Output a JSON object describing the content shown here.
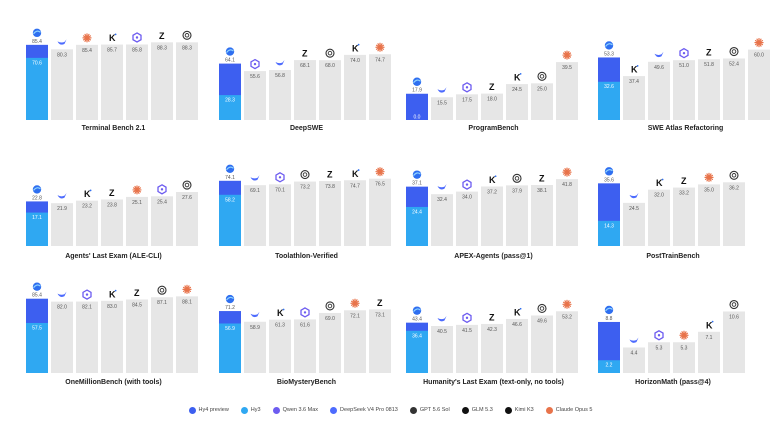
{
  "legend": [
    {
      "key": "hy4p",
      "label": "Hy4 preview",
      "color": "#3d5ff0"
    },
    {
      "key": "hy3",
      "label": "Hy3",
      "color": "#2fa8f2"
    },
    {
      "key": "qwen",
      "label": "Qwen 3.6 Max",
      "color": "#6d5cf0"
    },
    {
      "key": "ds",
      "label": "DeepSeek V4 Pro 0813",
      "color": "#4d6bfe"
    },
    {
      "key": "gpt",
      "label": "GPT 5.6 Sol",
      "color": "#333333"
    },
    {
      "key": "glm",
      "label": "GLM 5.3",
      "color": "#111111"
    },
    {
      "key": "kimi",
      "label": "Kimi K3",
      "color": "#111111"
    },
    {
      "key": "claude",
      "label": "Claude Opus 5",
      "color": "#e8734a"
    }
  ],
  "chart_data": [
    {
      "type": "bar",
      "title": "Terminal Bench 2.1",
      "ylim": [
        0,
        100
      ],
      "bars": [
        {
          "model": "hy4p",
          "value": 85.4,
          "inner_model": "hy3",
          "inner_value": 70.6
        },
        {
          "model": "ds",
          "value": 80.3
        },
        {
          "model": "claude",
          "value": 85.4
        },
        {
          "model": "kimi",
          "value": 85.7
        },
        {
          "model": "qwen",
          "value": 85.8
        },
        {
          "model": "glm",
          "value": 88.3
        },
        {
          "model": "gpt",
          "value": 88.3
        }
      ]
    },
    {
      "type": "bar",
      "title": "DeepSWE",
      "ylim": [
        0,
        100
      ],
      "bars": [
        {
          "model": "hy4p",
          "value": 64.1,
          "inner_model": "hy3",
          "inner_value": 28.3
        },
        {
          "model": "qwen",
          "value": 55.6
        },
        {
          "model": "ds",
          "value": 56.8
        },
        {
          "model": "glm",
          "value": 68.1
        },
        {
          "model": "gpt",
          "value": 68.0
        },
        {
          "model": "kimi",
          "value": 74.0
        },
        {
          "model": "claude",
          "value": 74.7
        }
      ]
    },
    {
      "type": "bar",
      "title": "ProgramBench",
      "ylim": [
        0,
        60
      ],
      "bars": [
        {
          "model": "hy4p",
          "value": 17.9,
          "inner_model": "hy3",
          "inner_value": 0.0
        },
        {
          "model": "ds",
          "value": 15.5
        },
        {
          "model": "qwen",
          "value": 17.5
        },
        {
          "model": "glm",
          "value": 18.0
        },
        {
          "model": "kimi",
          "value": 24.5
        },
        {
          "model": "gpt",
          "value": 25.0
        },
        {
          "model": "claude",
          "value": 39.5
        }
      ]
    },
    {
      "type": "bar",
      "title": "SWE Atlas Refactoring",
      "ylim": [
        0,
        75
      ],
      "bars": [
        {
          "model": "hy4p",
          "value": 53.3,
          "inner_model": "hy3",
          "inner_value": 32.6
        },
        {
          "model": "kimi",
          "value": 37.4
        },
        {
          "model": "ds",
          "value": 49.6
        },
        {
          "model": "qwen",
          "value": 51.0
        },
        {
          "model": "glm",
          "value": 51.8
        },
        {
          "model": "gpt",
          "value": 52.4
        },
        {
          "model": "claude",
          "value": 60.0
        }
      ]
    },
    {
      "type": "bar",
      "title": "Agents' Last Exam (ALE-CLI)",
      "ylim": [
        0,
        45
      ],
      "bars": [
        {
          "model": "hy4p",
          "value": 22.8,
          "inner_model": "hy3",
          "inner_value": 17.1
        },
        {
          "model": "ds",
          "value": 21.9
        },
        {
          "model": "kimi",
          "value": 23.2
        },
        {
          "model": "glm",
          "value": 23.8
        },
        {
          "model": "claude",
          "value": 25.1
        },
        {
          "model": "qwen",
          "value": 25.4
        },
        {
          "model": "gpt",
          "value": 27.6
        }
      ]
    },
    {
      "type": "bar",
      "title": "Toolathlon-Verified",
      "ylim": [
        0,
        100
      ],
      "bars": [
        {
          "model": "hy4p",
          "value": 74.1,
          "inner_model": "hy3",
          "inner_value": 58.2
        },
        {
          "model": "ds",
          "value": 69.1
        },
        {
          "model": "qwen",
          "value": 70.1
        },
        {
          "model": "gpt",
          "value": 73.2
        },
        {
          "model": "glm",
          "value": 73.8
        },
        {
          "model": "kimi",
          "value": 74.7
        },
        {
          "model": "claude",
          "value": 76.5
        }
      ]
    },
    {
      "type": "bar",
      "title": "APEX-Agents (pass@1)",
      "ylim": [
        0,
        55
      ],
      "bars": [
        {
          "model": "hy4p",
          "value": 37.1,
          "inner_model": "hy3",
          "inner_value": 24.4
        },
        {
          "model": "ds",
          "value": 32.4
        },
        {
          "model": "qwen",
          "value": 34.0
        },
        {
          "model": "kimi",
          "value": 37.2
        },
        {
          "model": "gpt",
          "value": 37.9
        },
        {
          "model": "glm",
          "value": 38.1
        },
        {
          "model": "claude",
          "value": 41.8
        }
      ]
    },
    {
      "type": "bar",
      "title": "PostTrainBench",
      "ylim": [
        0,
        50
      ],
      "bars": [
        {
          "model": "hy4p",
          "value": 35.6,
          "inner_model": "hy3",
          "inner_value": 14.3
        },
        {
          "model": "ds",
          "value": 24.5
        },
        {
          "model": "kimi",
          "value": 32.0
        },
        {
          "model": "glm",
          "value": 33.2
        },
        {
          "model": "claude",
          "value": 35.0
        },
        {
          "model": "gpt",
          "value": 36.2
        }
      ]
    },
    {
      "type": "bar",
      "title": "OneMillionBench (with tools)",
      "ylim": [
        0,
        100
      ],
      "bars": [
        {
          "model": "hy4p",
          "value": 85.4,
          "inner_model": "hy3",
          "inner_value": 57.5
        },
        {
          "model": "ds",
          "value": 82.0
        },
        {
          "model": "qwen",
          "value": 82.1
        },
        {
          "model": "kimi",
          "value": 83.0
        },
        {
          "model": "glm",
          "value": 84.5
        },
        {
          "model": "gpt",
          "value": 87.1
        },
        {
          "model": "claude",
          "value": 88.1
        }
      ]
    },
    {
      "type": "bar",
      "title": "BioMysteryBench",
      "ylim": [
        0,
        100
      ],
      "bars": [
        {
          "model": "hy4p",
          "value": 71.2,
          "inner_model": "hy3",
          "inner_value": 56.9
        },
        {
          "model": "ds",
          "value": 58.9
        },
        {
          "model": "kimi",
          "value": 61.3
        },
        {
          "model": "qwen",
          "value": 61.6
        },
        {
          "model": "gpt",
          "value": 69.0
        },
        {
          "model": "claude",
          "value": 72.1
        },
        {
          "model": "glm",
          "value": 73.1
        }
      ]
    },
    {
      "type": "bar",
      "title": "Humanity's Last Exam (text-only, no tools)",
      "ylim": [
        0,
        75
      ],
      "bars": [
        {
          "model": "hy4p",
          "value": 43.4,
          "inner_model": "hy3",
          "inner_value": 36.4
        },
        {
          "model": "ds",
          "value": 40.5
        },
        {
          "model": "qwen",
          "value": 41.5
        },
        {
          "model": "glm",
          "value": 42.3
        },
        {
          "model": "kimi",
          "value": 46.6
        },
        {
          "model": "gpt",
          "value": 49.6
        },
        {
          "model": "claude",
          "value": 53.2
        }
      ]
    },
    {
      "type": "bar",
      "title": "HorizonMath (pass@4)",
      "ylim": [
        0,
        15
      ],
      "bars": [
        {
          "model": "hy4p",
          "value": 8.8,
          "inner_model": "hy3",
          "inner_value": 2.2
        },
        {
          "model": "ds",
          "value": 4.4
        },
        {
          "model": "qwen",
          "value": 5.3
        },
        {
          "model": "claude",
          "value": 5.3
        },
        {
          "model": "kimi",
          "value": 7.1
        },
        {
          "model": "gpt",
          "value": 10.6
        }
      ]
    }
  ]
}
